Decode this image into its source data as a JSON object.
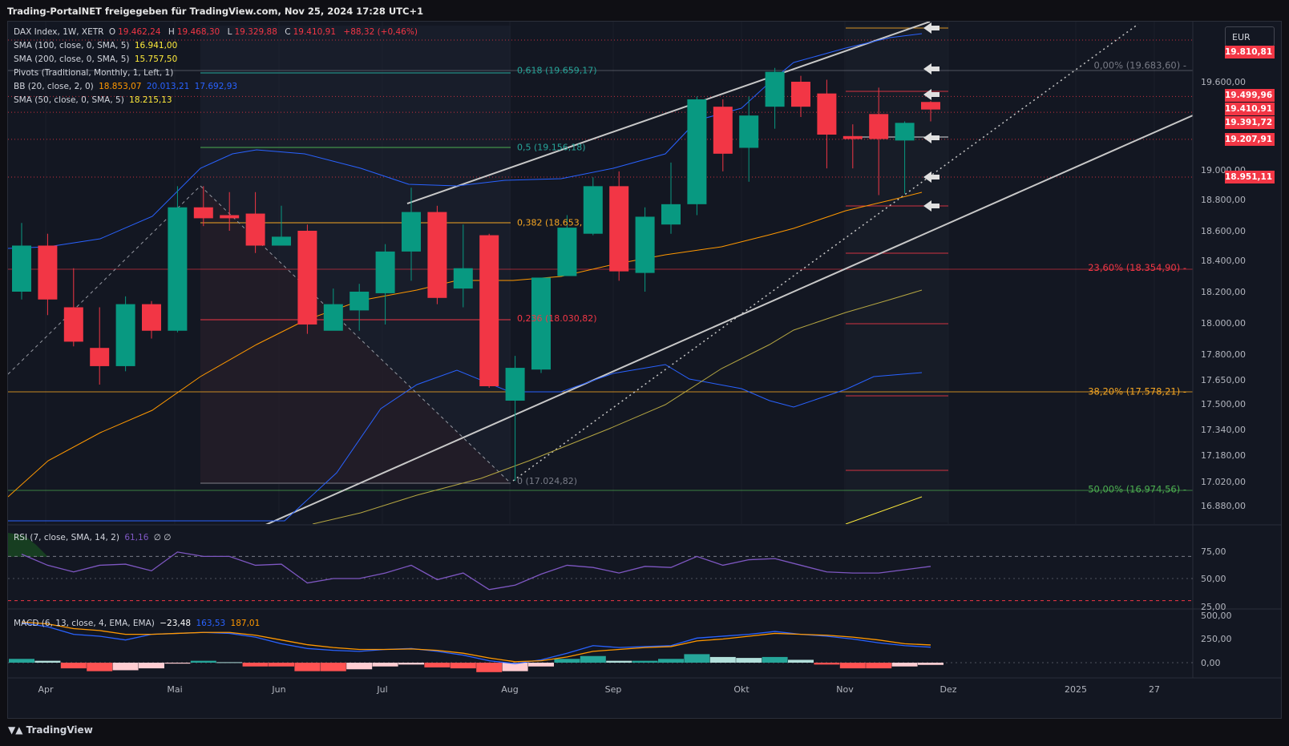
{
  "header": {
    "title": "Trading-PortalNET freigegeben für TradingView.com, Nov 25, 2024 17:28 UTC+1"
  },
  "footer": {
    "logo": "TradingView"
  },
  "currency": "EUR",
  "legend": {
    "main": {
      "symbol": "DAX Index, 1W, XETR",
      "o_label": "O",
      "o": "19.462,24",
      "h_label": "H",
      "h": "19.468,30",
      "l_label": "L",
      "l": "19.329,88",
      "c_label": "C",
      "c": "19.410,91",
      "chg": "+88,32 (+0,46%)"
    },
    "sma100": {
      "label": "SMA (100, close, 0, SMA, 5)",
      "value": "16.941,00"
    },
    "sma200": {
      "label": "SMA (200, close, 0, SMA, 5)",
      "value": "15.757,50"
    },
    "pivots": {
      "label": "Pivots (Traditional, Monthly, 1, Left, 1)"
    },
    "bb": {
      "label": "BB (20, close, 2, 0)",
      "basis": "18.853,07",
      "upper": "20.013,21",
      "lower": "17.692,93"
    },
    "sma50": {
      "label": "SMA (50, close, 0, SMA, 5)",
      "value": "18.215,13"
    },
    "rsi": {
      "label": "RSI (7, close, SMA, 14, 2)",
      "value": "61,16",
      "extra": "∅ ∅"
    },
    "macd": {
      "label": "MACD (6, 13, close, 4, EMA, EMA)",
      "hist": "−23,48",
      "macd": "163,53",
      "signal": "187,01"
    }
  },
  "price_tags": [
    {
      "text": "19.810,81",
      "price": 19810.81,
      "color": "#f23645"
    },
    {
      "text": "19.499,96",
      "price": 19499.96,
      "color": "#f23645"
    },
    {
      "text": "19.410,91",
      "price": 19410.91,
      "color": "#f23645"
    },
    {
      "text": "19.391,72",
      "price": 19391.72,
      "color": "#f23645"
    },
    {
      "text": "19.207,91",
      "price": 19207.91,
      "color": "#f23645"
    },
    {
      "text": "18.951,11",
      "price": 18951.11,
      "color": "#f23645"
    }
  ],
  "fib_labels": [
    {
      "text": "0,618 (19.659,17)",
      "price": 19659.17,
      "color": "#26a69a"
    },
    {
      "text": "0,5 (19.156,18)",
      "price": 19156.18,
      "color": "#26a69a"
    },
    {
      "text": "0,382 (18.653,",
      "price": 18653,
      "color": "#f5a623"
    },
    {
      "text": "0,236 (18.030,82)",
      "price": 18030.82,
      "color": "#f23645"
    },
    {
      "text": "0 (17.024,82)",
      "price": 17024.82,
      "color": "#787b86"
    }
  ],
  "fib_right_labels": [
    {
      "text": "0,00% (19.683,60) -",
      "price": 19683.6,
      "color": "#787b86"
    },
    {
      "text": "23,60% (18.354,90) -",
      "price": 18354.9,
      "color": "#f23645"
    },
    {
      "text": "38,20% (17.578,21) -",
      "price": 17578.21,
      "color": "#f5a623"
    },
    {
      "text": "50,00% (16.974,56) -",
      "price": 16974.56,
      "color": "#4caf50"
    }
  ],
  "chart_data": {
    "type": "candlestick",
    "symbol": "DAX Index",
    "timeframe": "1W",
    "x_labels": [
      "Apr",
      "Mai",
      "Jun",
      "Jul",
      "Aug",
      "Sep",
      "Okt",
      "Nov",
      "Dez",
      "2025",
      "27"
    ],
    "y_ticks": [
      "19.600,00",
      "19.000,00",
      "18.800,00",
      "18.600,00",
      "18.400,00",
      "18.200,00",
      "18.000,00",
      "17.800,00",
      "17.650,00",
      "17.500,00",
      "17.340,00",
      "17.180,00",
      "17.020,00",
      "16.880,00"
    ],
    "candles": [
      {
        "o": 18200,
        "h": 18650,
        "l": 18150,
        "c": 18500
      },
      {
        "o": 18500,
        "h": 18580,
        "l": 18050,
        "c": 18150
      },
      {
        "o": 18100,
        "h": 18350,
        "l": 17850,
        "c": 17880
      },
      {
        "o": 17840,
        "h": 18100,
        "l": 17620,
        "c": 17730
      },
      {
        "o": 17730,
        "h": 18170,
        "l": 17700,
        "c": 18120
      },
      {
        "o": 18120,
        "h": 18140,
        "l": 17900,
        "c": 17950
      },
      {
        "o": 17950,
        "h": 18890,
        "l": 17940,
        "c": 18750
      },
      {
        "o": 18750,
        "h": 18890,
        "l": 18630,
        "c": 18680
      },
      {
        "o": 18700,
        "h": 18850,
        "l": 18600,
        "c": 18680
      },
      {
        "o": 18710,
        "h": 18850,
        "l": 18450,
        "c": 18500
      },
      {
        "o": 18500,
        "h": 18760,
        "l": 18500,
        "c": 18560
      },
      {
        "o": 18600,
        "h": 18640,
        "l": 17930,
        "c": 17990
      },
      {
        "o": 17950,
        "h": 18220,
        "l": 17960,
        "c": 18120
      },
      {
        "o": 18080,
        "h": 18250,
        "l": 17950,
        "c": 18200
      },
      {
        "o": 18190,
        "h": 18510,
        "l": 17990,
        "c": 18460
      },
      {
        "o": 18460,
        "h": 18880,
        "l": 18270,
        "c": 18720
      },
      {
        "o": 18720,
        "h": 18760,
        "l": 18120,
        "c": 18160
      },
      {
        "o": 18220,
        "h": 18640,
        "l": 18100,
        "c": 18350
      },
      {
        "o": 18570,
        "h": 18580,
        "l": 17600,
        "c": 17610
      },
      {
        "o": 17520,
        "h": 17790,
        "l": 17024,
        "c": 17720
      },
      {
        "o": 17710,
        "h": 18280,
        "l": 17690,
        "c": 18290
      },
      {
        "o": 18300,
        "h": 18700,
        "l": 18300,
        "c": 18620
      },
      {
        "o": 18580,
        "h": 18950,
        "l": 18570,
        "c": 18890
      },
      {
        "o": 18890,
        "h": 18990,
        "l": 18270,
        "c": 18330
      },
      {
        "o": 18320,
        "h": 18750,
        "l": 18200,
        "c": 18690
      },
      {
        "o": 18640,
        "h": 19050,
        "l": 18580,
        "c": 18770
      },
      {
        "o": 18770,
        "h": 19500,
        "l": 18700,
        "c": 19480
      },
      {
        "o": 19430,
        "h": 19480,
        "l": 18990,
        "c": 19110
      },
      {
        "o": 19150,
        "h": 19500,
        "l": 18920,
        "c": 19370
      },
      {
        "o": 19430,
        "h": 19670,
        "l": 19280,
        "c": 19650
      },
      {
        "o": 19600,
        "h": 19630,
        "l": 19360,
        "c": 19430
      },
      {
        "o": 19520,
        "h": 19610,
        "l": 19010,
        "c": 19240
      },
      {
        "o": 19230,
        "h": 19310,
        "l": 19010,
        "c": 19210
      },
      {
        "o": 19380,
        "h": 19560,
        "l": 18830,
        "c": 19210
      },
      {
        "o": 19200,
        "h": 19330,
        "l": 18840,
        "c": 19320
      },
      {
        "o": 19462.24,
        "h": 19468.3,
        "l": 19329.88,
        "c": 19410.91
      }
    ],
    "rsi_ticks": [
      "75,00",
      "50,00",
      "25,00"
    ],
    "rsi": [
      72,
      62,
      56,
      62,
      63,
      57,
      74,
      70,
      70,
      62,
      63,
      46,
      50,
      50,
      55,
      62,
      49,
      55,
      40,
      44,
      54,
      62,
      60,
      55,
      61,
      60,
      70,
      62,
      67,
      68,
      62,
      56,
      55,
      55,
      58,
      61
    ],
    "macd_ticks": [
      "500,00",
      "250,00",
      "0,00"
    ],
    "macd_line": [
      420,
      380,
      300,
      280,
      240,
      300,
      310,
      320,
      310,
      270,
      200,
      150,
      130,
      120,
      140,
      150,
      120,
      80,
      20,
      -10,
      30,
      100,
      180,
      160,
      170,
      180,
      260,
      280,
      300,
      330,
      300,
      280,
      250,
      210,
      180,
      163.53
    ],
    "macd_signal": [
      430,
      410,
      360,
      340,
      300,
      300,
      310,
      320,
      320,
      290,
      240,
      190,
      160,
      140,
      140,
      145,
      130,
      100,
      50,
      10,
      20,
      60,
      120,
      140,
      160,
      170,
      230,
      250,
      280,
      310,
      300,
      290,
      270,
      240,
      200,
      187.01
    ],
    "macd_hist": [
      40,
      20,
      -60,
      -90,
      -80,
      -60,
      -10,
      20,
      5,
      -40,
      -40,
      -90,
      -90,
      -70,
      -40,
      -20,
      -50,
      -60,
      -100,
      -90,
      -40,
      40,
      70,
      20,
      20,
      40,
      90,
      60,
      50,
      60,
      30,
      -20,
      -60,
      -60,
      -40,
      -23.48
    ]
  }
}
